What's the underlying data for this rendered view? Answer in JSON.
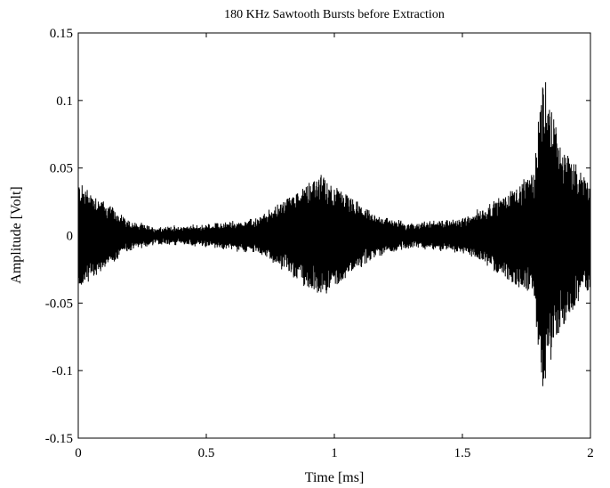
{
  "chart_data": {
    "type": "line",
    "title": "180 KHz Sawtooth Bursts before Extraction",
    "xlabel": "Time [ms]",
    "ylabel": "Amplitude [Volt]",
    "xlim": [
      0,
      2
    ],
    "ylim": [
      -0.15,
      0.15
    ],
    "x_ticks": [
      0,
      0.5,
      1,
      1.5,
      2
    ],
    "x_tick_labels": [
      "0",
      "0.5",
      "1",
      "1.5",
      "2"
    ],
    "y_ticks": [
      0.15,
      0.1,
      0.05,
      0,
      -0.05,
      -0.1,
      -0.15
    ],
    "y_tick_labels": [
      "0.15",
      "0.1",
      "0.05",
      "0",
      "-0.05",
      "-0.1",
      "-0.15"
    ],
    "grid": false,
    "line_color": "#000000",
    "envelope": [
      {
        "time": 0.0,
        "amplitude": 0.04
      },
      {
        "time": 0.1,
        "amplitude": 0.025
      },
      {
        "time": 0.2,
        "amplitude": 0.01
      },
      {
        "time": 0.3,
        "amplitude": 0.005
      },
      {
        "time": 0.5,
        "amplitude": 0.007
      },
      {
        "time": 0.7,
        "amplitude": 0.012
      },
      {
        "time": 0.8,
        "amplitude": 0.025
      },
      {
        "time": 0.9,
        "amplitude": 0.04
      },
      {
        "time": 0.95,
        "amplitude": 0.044
      },
      {
        "time": 1.05,
        "amplitude": 0.03
      },
      {
        "time": 1.15,
        "amplitude": 0.015
      },
      {
        "time": 1.3,
        "amplitude": 0.008
      },
      {
        "time": 1.5,
        "amplitude": 0.012
      },
      {
        "time": 1.6,
        "amplitude": 0.022
      },
      {
        "time": 1.7,
        "amplitude": 0.035
      },
      {
        "time": 1.78,
        "amplitude": 0.045
      },
      {
        "time": 1.8,
        "amplitude": 0.1
      },
      {
        "time": 1.82,
        "amplitude": 0.12
      },
      {
        "time": 1.84,
        "amplitude": 0.1
      },
      {
        "time": 1.88,
        "amplitude": 0.07
      },
      {
        "time": 1.95,
        "amplitude": 0.05
      },
      {
        "time": 2.0,
        "amplitude": 0.04
      }
    ]
  }
}
